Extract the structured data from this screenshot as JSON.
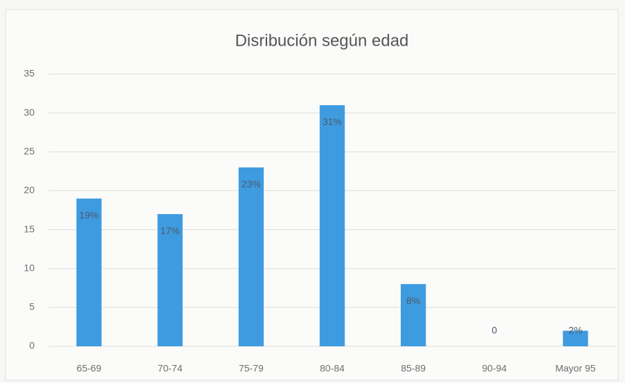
{
  "chart_data": {
    "type": "bar",
    "title": "Disribución según edad",
    "categories": [
      "65-69",
      "70-74",
      "75-79",
      "80-84",
      "85-89",
      "90-94",
      "Mayor 95"
    ],
    "values": [
      19,
      17,
      23,
      31,
      8,
      0,
      2
    ],
    "value_labels": [
      "19%",
      "17%",
      "23%",
      "31%",
      "8%",
      "0",
      "2%"
    ],
    "color": "#3f9be0",
    "ylim": [
      0,
      35
    ],
    "yticks": [
      0,
      5,
      10,
      15,
      20,
      25,
      30,
      35
    ],
    "grid": true
  }
}
